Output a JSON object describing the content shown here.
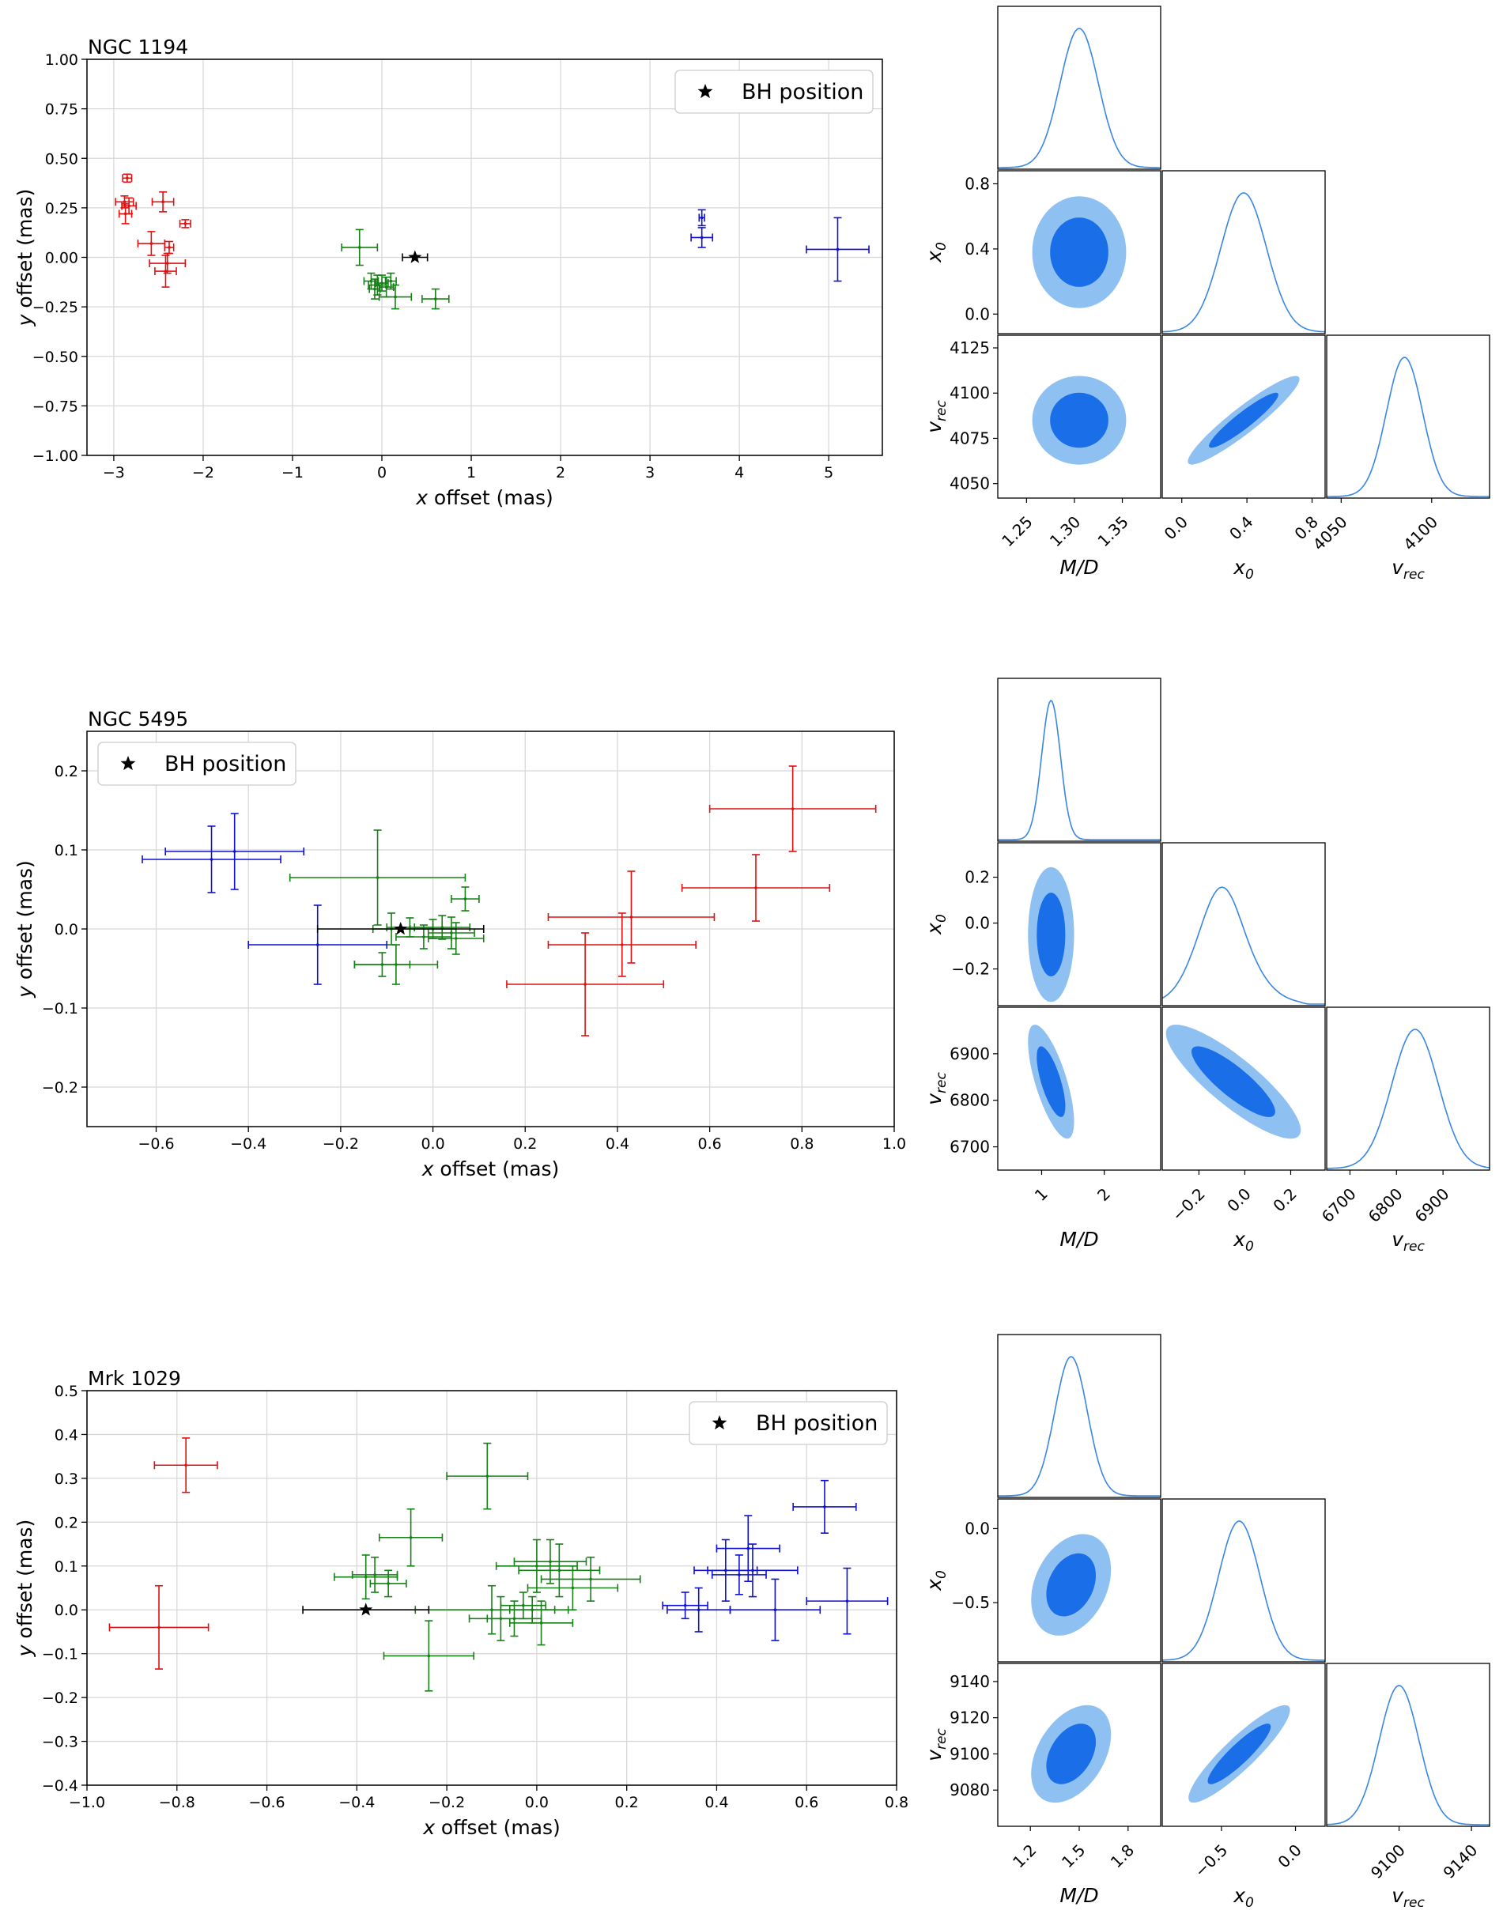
{
  "chart_data": [
    {
      "type": "scatter",
      "title": "NGC 1194",
      "xlabel": "x offset (mas)",
      "ylabel": "y offset (mas)",
      "xlim": [
        -3.3,
        5.6
      ],
      "ylim": [
        -1.0,
        1.0
      ],
      "xticks": [
        -3,
        -2,
        -1,
        0,
        1,
        2,
        3,
        4,
        5
      ],
      "yticks": [
        -1.0,
        -0.75,
        -0.5,
        -0.25,
        0.0,
        0.25,
        0.5,
        0.75,
        1.0
      ],
      "xtick_labels": [
        "−3",
        "−2",
        "−1",
        "0",
        "1",
        "2",
        "3",
        "4",
        "5"
      ],
      "ytick_labels": [
        "−1.00",
        "−0.75",
        "−0.50",
        "−0.25",
        "0.00",
        "0.25",
        "0.50",
        "0.75",
        "1.00"
      ],
      "grid": true,
      "legend": {
        "location": "upper right",
        "entries": [
          {
            "label": "BH position",
            "marker": "star"
          }
        ]
      },
      "series": [
        {
          "color": "#e01010",
          "points": [
            {
              "x": -2.85,
              "y": 0.4,
              "xerr": 0.05,
              "yerr": 0.02
            },
            {
              "x": -2.88,
              "y": 0.28,
              "xerr": 0.1,
              "yerr": 0.03
            },
            {
              "x": -2.83,
              "y": 0.26,
              "xerr": 0.08,
              "yerr": 0.04
            },
            {
              "x": -2.87,
              "y": 0.22,
              "xerr": 0.07,
              "yerr": 0.05
            },
            {
              "x": -2.45,
              "y": 0.28,
              "xerr": 0.12,
              "yerr": 0.05
            },
            {
              "x": -2.2,
              "y": 0.17,
              "xerr": 0.06,
              "yerr": 0.02
            },
            {
              "x": -2.58,
              "y": 0.07,
              "xerr": 0.15,
              "yerr": 0.06
            },
            {
              "x": -2.38,
              "y": 0.05,
              "xerr": 0.05,
              "yerr": 0.03
            },
            {
              "x": -2.4,
              "y": -0.03,
              "xerr": 0.2,
              "yerr": 0.05
            },
            {
              "x": -2.42,
              "y": -0.07,
              "xerr": 0.12,
              "yerr": 0.08
            }
          ]
        },
        {
          "color": "#158015",
          "points": [
            {
              "x": -0.25,
              "y": 0.05,
              "xerr": 0.2,
              "yerr": 0.09
            },
            {
              "x": -0.12,
              "y": -0.12,
              "xerr": 0.08,
              "yerr": 0.04
            },
            {
              "x": -0.05,
              "y": -0.14,
              "xerr": 0.1,
              "yerr": 0.05
            },
            {
              "x": 0.0,
              "y": -0.13,
              "xerr": 0.07,
              "yerr": 0.04
            },
            {
              "x": 0.05,
              "y": -0.15,
              "xerr": 0.08,
              "yerr": 0.05
            },
            {
              "x": -0.08,
              "y": -0.16,
              "xerr": 0.06,
              "yerr": 0.05
            },
            {
              "x": 0.1,
              "y": -0.12,
              "xerr": 0.06,
              "yerr": 0.04
            },
            {
              "x": 0.15,
              "y": -0.2,
              "xerr": 0.18,
              "yerr": 0.06
            },
            {
              "x": 0.6,
              "y": -0.21,
              "xerr": 0.15,
              "yerr": 0.05
            }
          ]
        },
        {
          "color": "#1010d0",
          "points": [
            {
              "x": 3.58,
              "y": 0.2,
              "xerr": 0.03,
              "yerr": 0.04
            },
            {
              "x": 3.58,
              "y": 0.1,
              "xerr": 0.12,
              "yerr": 0.05
            },
            {
              "x": 5.1,
              "y": 0.04,
              "xerr": 0.35,
              "yerr": 0.16
            }
          ]
        },
        {
          "color": "#000000",
          "name": "BH position",
          "marker": "star",
          "points": [
            {
              "x": 0.37,
              "y": 0.0,
              "xerr": 0.14,
              "yerr": 0.0
            }
          ]
        }
      ],
      "corner": {
        "params": [
          "M/D",
          "x_0",
          "v_rec"
        ],
        "ranges": [
          [
            1.22,
            1.39
          ],
          [
            -0.12,
            0.88
          ],
          [
            4042,
            4132
          ]
        ],
        "means": [
          1.305,
          0.38,
          4085
        ],
        "sigmas": [
          0.02,
          0.14,
          10
        ],
        "correlations": {
          "1-2": 0.93
        },
        "ticks": [
          [
            1.25,
            1.3,
            1.35
          ],
          [
            0.0,
            0.4,
            0.8
          ],
          [
            4050,
            4075,
            4100,
            4125
          ]
        ],
        "tick_labels": [
          [
            "1.25",
            "1.30",
            "1.35"
          ],
          [
            "0.0",
            "0.4",
            "0.8"
          ],
          [
            "4050",
            "4075",
            "4100",
            "4125"
          ]
        ],
        "xtick_for_last": [
          "4050",
          "4100"
        ]
      }
    },
    {
      "type": "scatter",
      "title": "NGC 5495",
      "xlabel": "x offset (mas)",
      "ylabel": "y offset (mas)",
      "xlim": [
        -0.75,
        1.0
      ],
      "ylim": [
        -0.25,
        0.25
      ],
      "xticks": [
        -0.6,
        -0.4,
        -0.2,
        0.0,
        0.2,
        0.4,
        0.6,
        0.8,
        1.0
      ],
      "yticks": [
        -0.2,
        -0.1,
        0.0,
        0.1,
        0.2
      ],
      "xtick_labels": [
        "−0.6",
        "−0.4",
        "−0.2",
        "0.0",
        "0.2",
        "0.4",
        "0.6",
        "0.8",
        "1.0"
      ],
      "ytick_labels": [
        "−0.2",
        "−0.1",
        "0.0",
        "0.1",
        "0.2"
      ],
      "grid": true,
      "legend": {
        "location": "upper left",
        "entries": [
          {
            "label": "BH position",
            "marker": "star"
          }
        ]
      },
      "series": [
        {
          "color": "#1010d0",
          "points": [
            {
              "x": -0.48,
              "y": 0.088,
              "xerr": 0.15,
              "yerr": 0.042
            },
            {
              "x": -0.43,
              "y": 0.098,
              "xerr": 0.15,
              "yerr": 0.048
            },
            {
              "x": -0.25,
              "y": -0.02,
              "xerr": 0.15,
              "yerr": 0.05
            }
          ]
        },
        {
          "color": "#158015",
          "points": [
            {
              "x": -0.12,
              "y": 0.065,
              "xerr": 0.19,
              "yerr": 0.06
            },
            {
              "x": -0.11,
              "y": -0.045,
              "xerr": 0.06,
              "yerr": 0.015
            },
            {
              "x": -0.08,
              "y": -0.045,
              "xerr": 0.09,
              "yerr": 0.025
            },
            {
              "x": -0.09,
              "y": 0.0,
              "xerr": 0.04,
              "yerr": 0.02
            },
            {
              "x": -0.05,
              "y": 0.002,
              "xerr": 0.05,
              "yerr": 0.012
            },
            {
              "x": -0.02,
              "y": -0.01,
              "xerr": 0.06,
              "yerr": 0.015
            },
            {
              "x": 0.0,
              "y": 0.0,
              "xerr": 0.05,
              "yerr": 0.012
            },
            {
              "x": 0.02,
              "y": 0.002,
              "xerr": 0.06,
              "yerr": 0.015
            },
            {
              "x": 0.04,
              "y": -0.005,
              "xerr": 0.05,
              "yerr": 0.02
            },
            {
              "x": 0.05,
              "y": -0.012,
              "xerr": 0.06,
              "yerr": 0.02
            },
            {
              "x": 0.07,
              "y": 0.038,
              "xerr": 0.03,
              "yerr": 0.015
            }
          ]
        },
        {
          "color": "#e01010",
          "points": [
            {
              "x": 0.33,
              "y": -0.07,
              "xerr": 0.17,
              "yerr": 0.065
            },
            {
              "x": 0.41,
              "y": -0.02,
              "xerr": 0.16,
              "yerr": 0.04
            },
            {
              "x": 0.43,
              "y": 0.015,
              "xerr": 0.18,
              "yerr": 0.058
            },
            {
              "x": 0.7,
              "y": 0.052,
              "xerr": 0.16,
              "yerr": 0.042
            },
            {
              "x": 0.78,
              "y": 0.152,
              "xerr": 0.18,
              "yerr": 0.054
            }
          ]
        },
        {
          "color": "#000000",
          "name": "BH position",
          "marker": "star",
          "points": [
            {
              "x": -0.07,
              "y": 0.0,
              "xerr": 0.18,
              "yerr": 0.0
            }
          ]
        }
      ],
      "corner": {
        "params": [
          "M/D",
          "x_0",
          "v_rec"
        ],
        "ranges": [
          [
            0.3,
            2.9
          ],
          [
            -0.36,
            0.35
          ],
          [
            6650,
            7000
          ]
        ],
        "means": [
          1.15,
          -0.05,
          6840
        ],
        "sigmas": [
          0.15,
          0.12,
          50
        ],
        "correlations": {
          "0-2": -0.7,
          "1-2": -0.85
        },
        "ticks": [
          [
            1,
            2
          ],
          [
            -0.2,
            0.0,
            0.2
          ],
          [
            6700,
            6800,
            6900
          ]
        ],
        "tick_labels": [
          [
            "1",
            "2"
          ],
          [
            "−0.2",
            "0.0",
            "0.2"
          ],
          [
            "6700",
            "6800",
            "6900"
          ]
        ],
        "xtick_for_last": [
          "6700",
          "6800",
          "6900"
        ]
      }
    },
    {
      "type": "scatter",
      "title": "Mrk 1029",
      "xlabel": "x offset (mas)",
      "ylabel": "y offset (mas)",
      "xlim": [
        -1.0,
        0.8
      ],
      "ylim": [
        -0.4,
        0.5
      ],
      "xticks": [
        -1.0,
        -0.8,
        -0.6,
        -0.4,
        -0.2,
        0.0,
        0.2,
        0.4,
        0.6,
        0.8
      ],
      "yticks": [
        -0.4,
        -0.3,
        -0.2,
        -0.1,
        0.0,
        0.1,
        0.2,
        0.3,
        0.4,
        0.5
      ],
      "xtick_labels": [
        "−1.0",
        "−0.8",
        "−0.6",
        "−0.4",
        "−0.2",
        "0.0",
        "0.2",
        "0.4",
        "0.6",
        "0.8"
      ],
      "ytick_labels": [
        "−0.4",
        "−0.3",
        "−0.2",
        "−0.1",
        "0.0",
        "0.1",
        "0.2",
        "0.3",
        "0.4",
        "0.5"
      ],
      "grid": true,
      "legend": {
        "location": "upper right",
        "entries": [
          {
            "label": "BH position",
            "marker": "star"
          }
        ]
      },
      "series": [
        {
          "color": "#e01010",
          "points": [
            {
              "x": -0.78,
              "y": 0.33,
              "xerr": 0.07,
              "yerr": 0.062
            },
            {
              "x": -0.84,
              "y": -0.04,
              "xerr": 0.11,
              "yerr": 0.095
            }
          ]
        },
        {
          "color": "#158015",
          "points": [
            {
              "x": -0.38,
              "y": 0.075,
              "xerr": 0.07,
              "yerr": 0.05
            },
            {
              "x": -0.36,
              "y": 0.08,
              "xerr": 0.05,
              "yerr": 0.04
            },
            {
              "x": -0.33,
              "y": 0.06,
              "xerr": 0.04,
              "yerr": 0.03
            },
            {
              "x": -0.28,
              "y": 0.165,
              "xerr": 0.07,
              "yerr": 0.065
            },
            {
              "x": -0.24,
              "y": -0.105,
              "xerr": 0.1,
              "yerr": 0.08
            },
            {
              "x": -0.11,
              "y": 0.305,
              "xerr": 0.09,
              "yerr": 0.075
            },
            {
              "x": -0.1,
              "y": 0.0,
              "xerr": 0.17,
              "yerr": 0.055
            },
            {
              "x": -0.08,
              "y": -0.02,
              "xerr": 0.07,
              "yerr": 0.05
            },
            {
              "x": -0.05,
              "y": -0.02,
              "xerr": 0.06,
              "yerr": 0.04
            },
            {
              "x": -0.03,
              "y": 0.01,
              "xerr": 0.05,
              "yerr": 0.03
            },
            {
              "x": -0.01,
              "y": 0.0,
              "xerr": 0.05,
              "yerr": 0.03
            },
            {
              "x": 0.0,
              "y": 0.1,
              "xerr": 0.09,
              "yerr": 0.06
            },
            {
              "x": 0.01,
              "y": -0.03,
              "xerr": 0.07,
              "yerr": 0.05
            },
            {
              "x": 0.03,
              "y": 0.11,
              "xerr": 0.08,
              "yerr": 0.05
            },
            {
              "x": 0.05,
              "y": 0.09,
              "xerr": 0.09,
              "yerr": 0.06
            },
            {
              "x": 0.08,
              "y": 0.05,
              "xerr": 0.1,
              "yerr": 0.05
            },
            {
              "x": 0.12,
              "y": 0.07,
              "xerr": 0.11,
              "yerr": 0.05
            }
          ]
        },
        {
          "color": "#1010d0",
          "points": [
            {
              "x": 0.33,
              "y": 0.01,
              "xerr": 0.05,
              "yerr": 0.03
            },
            {
              "x": 0.36,
              "y": 0.0,
              "xerr": 0.07,
              "yerr": 0.05
            },
            {
              "x": 0.42,
              "y": 0.09,
              "xerr": 0.07,
              "yerr": 0.07
            },
            {
              "x": 0.45,
              "y": 0.08,
              "xerr": 0.06,
              "yerr": 0.045
            },
            {
              "x": 0.47,
              "y": 0.14,
              "xerr": 0.07,
              "yerr": 0.075
            },
            {
              "x": 0.48,
              "y": 0.09,
              "xerr": 0.1,
              "yerr": 0.06
            },
            {
              "x": 0.53,
              "y": 0.0,
              "xerr": 0.1,
              "yerr": 0.07
            },
            {
              "x": 0.64,
              "y": 0.235,
              "xerr": 0.07,
              "yerr": 0.06
            },
            {
              "x": 0.69,
              "y": 0.02,
              "xerr": 0.09,
              "yerr": 0.075
            }
          ]
        },
        {
          "color": "#000000",
          "name": "BH position",
          "marker": "star",
          "points": [
            {
              "x": -0.38,
              "y": 0.0,
              "xerr": 0.14,
              "yerr": 0.0
            }
          ]
        }
      ],
      "corner": {
        "params": [
          "M/D",
          "x_0",
          "v_rec"
        ],
        "ranges": [
          [
            1.0,
            2.0
          ],
          [
            -0.9,
            0.2
          ],
          [
            9060,
            9150
          ]
        ],
        "means": [
          1.45,
          -0.38,
          9100
        ],
        "sigmas": [
          0.1,
          0.14,
          11
        ],
        "correlations": {
          "0-1": 0.3,
          "0-2": 0.4,
          "1-2": 0.9
        },
        "ticks": [
          [
            1.2,
            1.5,
            1.8
          ],
          [
            -0.5,
            0.0
          ],
          [
            9080,
            9100,
            9120,
            9140
          ]
        ],
        "tick_labels": [
          [
            "1.2",
            "1.5",
            "1.8"
          ],
          [
            "−0.5",
            "0.0"
          ],
          [
            "9080",
            "9100",
            "9120",
            "9140"
          ]
        ],
        "xtick_for_last": [
          "9100",
          "9140"
        ]
      }
    }
  ],
  "corner_labels": {
    "M/D": "M/D",
    "x_0": "x",
    "x_0_sub": "0",
    "v_rec": "v",
    "v_rec_sub": "rec"
  },
  "colors": {
    "contour_inner": "#1a6ee8",
    "contour_outer": "#8ec0f2",
    "curve": "#3a86e4",
    "grid": "#d8d8d8"
  }
}
